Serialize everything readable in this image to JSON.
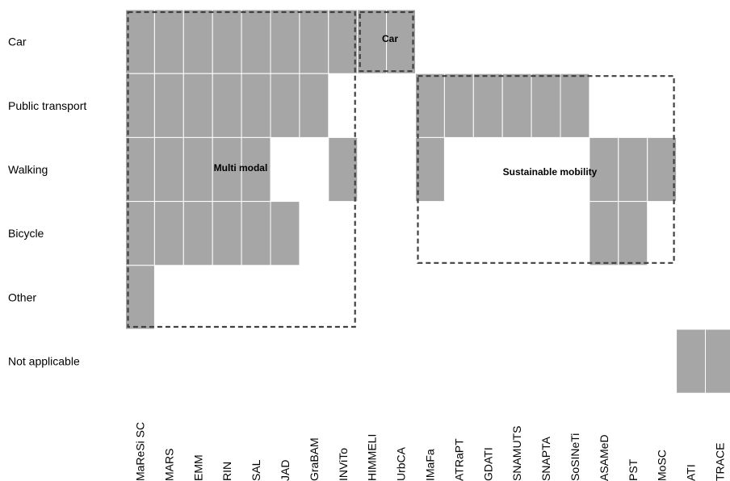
{
  "chart_data": {
    "type": "heatmap",
    "rows": [
      "Car",
      "Public transport",
      "Walking",
      "Bicycle",
      "Other",
      "Not applicable"
    ],
    "columns": [
      "MaReSi SC",
      "MARS",
      "EMM",
      "RIN",
      "SAL",
      "JAD",
      "GraBAM",
      "INViTo",
      "HIMMELI",
      "UrbCA",
      "IMaFa",
      "ATRaPT",
      "GDATI",
      "SNAMUTS",
      "SNAPTA",
      "SoSINeTi",
      "ASAMeD",
      "PST",
      "MoSC",
      "ATI",
      "TRACE"
    ],
    "filled": [
      [
        1,
        1,
        1,
        1,
        1,
        1,
        1,
        1,
        1,
        1,
        0,
        0,
        0,
        0,
        0,
        0,
        0,
        0,
        0,
        0,
        0
      ],
      [
        1,
        1,
        1,
        1,
        1,
        1,
        1,
        0,
        0,
        0,
        1,
        1,
        1,
        1,
        1,
        1,
        0,
        0,
        0,
        0,
        0
      ],
      [
        1,
        1,
        1,
        1,
        1,
        0,
        0,
        1,
        0,
        0,
        1,
        0,
        0,
        0,
        0,
        0,
        1,
        1,
        1,
        0,
        0
      ],
      [
        1,
        1,
        1,
        1,
        1,
        1,
        0,
        0,
        0,
        0,
        0,
        0,
        0,
        0,
        0,
        0,
        1,
        1,
        0,
        0,
        0
      ],
      [
        1,
        0,
        0,
        0,
        0,
        0,
        0,
        0,
        0,
        0,
        0,
        0,
        0,
        0,
        0,
        0,
        0,
        0,
        0,
        0,
        0
      ],
      [
        0,
        0,
        0,
        0,
        0,
        0,
        0,
        0,
        0,
        0,
        0,
        0,
        0,
        0,
        0,
        0,
        0,
        0,
        0,
        1,
        1
      ]
    ],
    "groups": [
      {
        "label": "Multi modal",
        "col_start": 0,
        "col_end": 7,
        "row_start": 0,
        "row_end": 4
      },
      {
        "label": "Car",
        "col_start": 8,
        "col_end": 9,
        "row_start": 0,
        "row_end": 0
      },
      {
        "label": "Sustainable mobility",
        "col_start": 10,
        "col_end": 18,
        "row_start": 1,
        "row_end": 3
      }
    ],
    "colors": {
      "filled": "#a6a6a6",
      "cell_border": "#ffffff",
      "group_border": "#404040"
    }
  }
}
